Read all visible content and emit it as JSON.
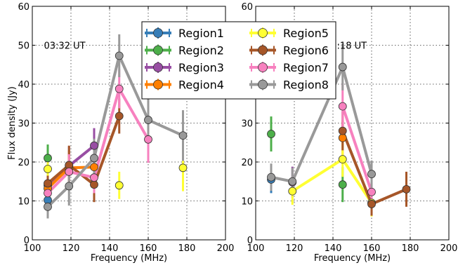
{
  "colors": {
    "Region1": "#377eb8",
    "Region2": "#4daf4a",
    "Region3": "#984ea3",
    "Region4": "#ff7f00",
    "Region5": "#ffff33",
    "Region6": "#a65628",
    "Region7": "#f781bf",
    "Region8": "#999999"
  },
  "chart_data": [
    {
      "type": "line",
      "annotation": "03:32 UT",
      "xlabel": "Frequency (MHz)",
      "ylabel": "Flux density (Jy)",
      "xlim": [
        100,
        200
      ],
      "ylim": [
        0,
        60
      ],
      "xticks": [
        "100",
        "120",
        "140",
        "160",
        "180",
        "200"
      ],
      "yticks": [
        "0",
        "10",
        "20",
        "30",
        "40",
        "50",
        "60"
      ],
      "grid": true,
      "legend": "top-center",
      "series": [
        {
          "name": "Region1",
          "x": [
            108
          ],
          "y": [
            10.2
          ],
          "err": [
            1.0
          ],
          "connect": false
        },
        {
          "name": "Region2",
          "x": [
            108
          ],
          "y": [
            21.0
          ],
          "err": [
            3.5
          ],
          "connect": false
        },
        {
          "name": "Region3",
          "x": [
            108,
            119,
            132
          ],
          "y": [
            14.0,
            19.0,
            24.2
          ],
          "err": [
            2.0,
            5.0,
            4.5
          ],
          "connect": true
        },
        {
          "name": "Region4",
          "x": [
            108,
            119,
            132
          ],
          "y": [
            13.2,
            18.5,
            18.7
          ],
          "err": [
            2.0,
            4.5,
            4.0
          ],
          "connect": true
        },
        {
          "name": "Region5",
          "x": [
            108,
            119,
            145,
            178
          ],
          "y": [
            18.2,
            17.5,
            14.0,
            18.5
          ],
          "err": [
            2.5,
            4.0,
            3.5,
            6.0
          ],
          "connect": false
        },
        {
          "name": "Region6",
          "x": [
            108,
            119,
            132,
            145
          ],
          "y": [
            14.5,
            19.2,
            14.2,
            31.8
          ],
          "err": [
            2.0,
            5.0,
            4.5,
            4.5
          ],
          "connect": true
        },
        {
          "name": "Region7",
          "x": [
            108,
            119,
            132,
            145,
            160
          ],
          "y": [
            12.0,
            17.5,
            16.0,
            38.8,
            25.8
          ],
          "err": [
            2.0,
            4.5,
            4.0,
            5.0,
            6.0
          ],
          "connect": true
        },
        {
          "name": "Region8",
          "x": [
            108,
            119,
            132,
            145,
            160,
            178
          ],
          "y": [
            8.5,
            13.8,
            21.0,
            47.3,
            30.8,
            26.8
          ],
          "err": [
            3.0,
            5.0,
            5.0,
            5.5,
            6.0,
            6.5
          ],
          "connect": true
        }
      ]
    },
    {
      "type": "line",
      "annotation": "03:18 UT",
      "xlabel": "Frequency (MHz)",
      "ylabel": "",
      "xlim": [
        100,
        200
      ],
      "ylim": [
        0,
        60
      ],
      "xticks": [
        "100",
        "120",
        "140",
        "160",
        "180",
        "200"
      ],
      "yticks": [
        "0",
        "10",
        "20",
        "30",
        "40",
        "50",
        "60"
      ],
      "grid": true,
      "legend": "",
      "series": [
        {
          "name": "Region1",
          "x": [
            108
          ],
          "y": [
            15.5
          ],
          "err": [
            3.5
          ],
          "connect": false
        },
        {
          "name": "Region2",
          "x": [
            108,
            145
          ],
          "y": [
            27.2,
            14.2
          ],
          "err": [
            4.5,
            4.5
          ],
          "connect": false
        },
        {
          "name": "Region3",
          "x": [
            119
          ],
          "y": [
            14.8
          ],
          "err": [
            4.0
          ],
          "connect": false
        },
        {
          "name": "Region4",
          "x": [
            145
          ],
          "y": [
            26.2
          ],
          "err": [
            4.5
          ],
          "connect": false
        },
        {
          "name": "Region5",
          "x": [
            119,
            145,
            160
          ],
          "y": [
            12.5,
            20.7,
            9.5
          ],
          "err": [
            3.5,
            4.5,
            3.5
          ],
          "connect": true
        },
        {
          "name": "Region6",
          "x": [
            145,
            160,
            178
          ],
          "y": [
            28.0,
            9.2,
            13.0
          ],
          "err": [
            5.0,
            3.0,
            4.5
          ],
          "connect": true
        },
        {
          "name": "Region7",
          "x": [
            145,
            160
          ],
          "y": [
            34.3,
            12.3
          ],
          "err": [
            6.0,
            3.5
          ],
          "connect": true
        },
        {
          "name": "Region8",
          "x": [
            108,
            119,
            145,
            160
          ],
          "y": [
            16.1,
            15.0,
            44.4,
            16.9
          ],
          "err": [
            3.5,
            3.5,
            6.0,
            3.5
          ],
          "connect": true
        }
      ]
    }
  ],
  "legend": {
    "columns": [
      [
        "Region1",
        "Region2",
        "Region3",
        "Region4"
      ],
      [
        "Region5",
        "Region6",
        "Region7",
        "Region8"
      ]
    ]
  }
}
